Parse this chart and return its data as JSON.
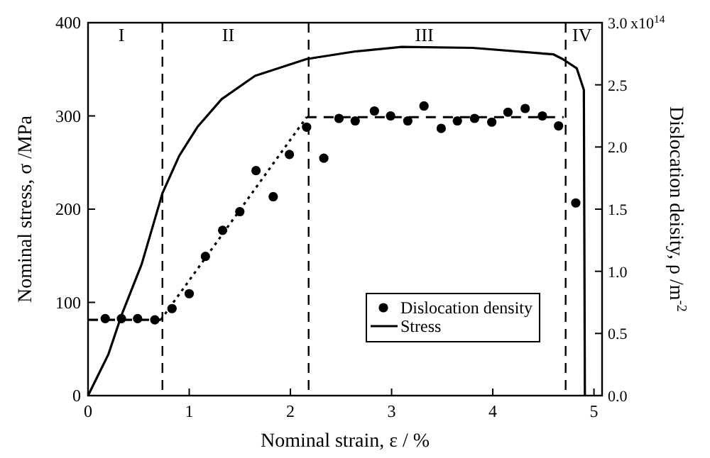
{
  "chart_data": {
    "type": "line",
    "xlabel": "Nominal strain, ε / %",
    "ylabel": "Nominal stress, σ /MPa",
    "y2label": "Dislocation deisity, ρ /m$^{-2}$",
    "xlim": [
      0,
      5.08
    ],
    "xticks": [
      0,
      1,
      2,
      3,
      4,
      5
    ],
    "ylim": [
      0,
      400
    ],
    "yticks": [
      0,
      100,
      200,
      300,
      400
    ],
    "y2lim": [
      0,
      3
    ],
    "y2ticks": [
      {
        "value": 0,
        "label": "0.0"
      },
      0.5,
      {
        "value": 1,
        "label": "1.0"
      },
      1.5,
      {
        "value": 2,
        "label": "2.0"
      },
      2.5,
      {
        "value": 3,
        "label": "3.0"
      }
    ],
    "grid": false,
    "legend": "bottom right",
    "ref_lines": [
      {
        "axis": "x",
        "value": 0.735,
        "line_style": "dashed",
        "color": "#000000"
      },
      {
        "axis": "x",
        "value": 2.18,
        "line_style": "dashed",
        "color": "#000000"
      },
      {
        "axis": "x",
        "value": 4.72,
        "line_style": "dashed",
        "color": "#000000"
      }
    ],
    "annotations": [
      "I",
      "II",
      "III",
      "IV",
      "x10$^{14}$"
    ],
    "series": [
      {
        "name": "Dislocation density",
        "type": "scatter",
        "axis": "y2",
        "marker": "circle",
        "color": "#000000",
        "x": [
          0.17,
          0.33,
          0.49,
          0.66,
          0.83,
          1.0,
          1.16,
          1.33,
          1.5,
          1.66,
          1.83,
          1.99,
          2.16,
          2.33,
          2.48,
          2.64,
          2.83,
          2.99,
          3.16,
          3.32,
          3.49,
          3.65,
          3.82,
          3.99,
          4.15,
          4.32,
          4.49,
          4.65,
          4.82
        ],
        "values": [
          0.62,
          0.62,
          0.62,
          0.61,
          0.7,
          0.82,
          1.12,
          1.33,
          1.48,
          1.81,
          1.6,
          1.94,
          2.16,
          1.91,
          2.23,
          2.21,
          2.29,
          2.25,
          2.21,
          2.33,
          2.15,
          2.21,
          2.23,
          2.2,
          2.28,
          2.31,
          2.25,
          2.17,
          1.55
        ]
      },
      {
        "name": "Stress",
        "axis": "y",
        "color": "#000000",
        "line_style": "solid",
        "x": [
          0,
          0.2,
          0.33,
          0.53,
          0.735,
          0.9,
          1.08,
          1.32,
          1.65,
          2.16,
          2.63,
          3.1,
          3.8,
          4.6,
          4.69,
          4.83,
          4.9,
          4.91
        ],
        "values": [
          0,
          44,
          86,
          141,
          217,
          257,
          288,
          318,
          343,
          361,
          369,
          374,
          373,
          366,
          361,
          351,
          328,
          0
        ]
      },
      {
        "axis": "y2",
        "color": "#000000",
        "line_style": "dashed",
        "x": [
          0,
          0.72
        ],
        "values": [
          0.61,
          0.61
        ]
      },
      {
        "axis": "y2",
        "color": "#000000",
        "line_style": "dotted",
        "x": [
          0.72,
          2.16
        ],
        "values": [
          0.61,
          2.24
        ]
      },
      {
        "axis": "y2",
        "color": "#000000",
        "line_style": "dashed",
        "x": [
          2.16,
          4.7
        ],
        "values": [
          2.24,
          2.24
        ]
      }
    ]
  }
}
